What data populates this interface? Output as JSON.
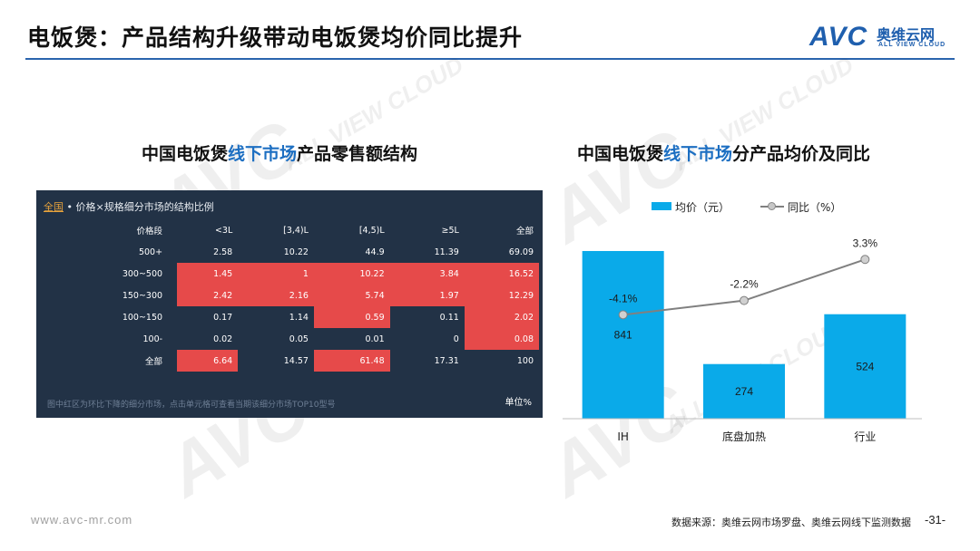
{
  "slide": {
    "title": "电饭煲：产品结构升级带动电饭煲均价同比提升"
  },
  "logo": {
    "brand": "AVC",
    "cn": "奥维云网",
    "en": "ALL VIEW CLOUD"
  },
  "left_panel": {
    "title_prefix": "中国电饭煲",
    "title_highlight": "线下市场",
    "title_suffix": "产品零售额结构",
    "table": {
      "header_tag": "全国",
      "header_text": " • 价格×规格细分市场的结构比例",
      "columns": [
        "价格段",
        "<3L",
        "[3,4)L",
        "[4,5)L",
        "≥5L",
        "全部"
      ],
      "rows": [
        {
          "label": "500+",
          "cells": [
            "2.58",
            "10.22",
            "44.9",
            "11.39",
            "69.09"
          ],
          "red": [
            false,
            false,
            false,
            false,
            false
          ]
        },
        {
          "label": "300~500",
          "cells": [
            "1.45",
            "1",
            "10.22",
            "3.84",
            "16.52"
          ],
          "red": [
            true,
            true,
            true,
            true,
            true
          ]
        },
        {
          "label": "150~300",
          "cells": [
            "2.42",
            "2.16",
            "5.74",
            "1.97",
            "12.29"
          ],
          "red": [
            true,
            true,
            true,
            true,
            true
          ]
        },
        {
          "label": "100~150",
          "cells": [
            "0.17",
            "1.14",
            "0.59",
            "0.11",
            "2.02"
          ],
          "red": [
            false,
            false,
            true,
            false,
            true
          ]
        },
        {
          "label": "100-",
          "cells": [
            "0.02",
            "0.05",
            "0.01",
            "0",
            "0.08"
          ],
          "red": [
            false,
            false,
            false,
            false,
            true
          ]
        },
        {
          "label": "全部",
          "cells": [
            "6.64",
            "14.57",
            "61.48",
            "17.31",
            "100"
          ],
          "red": [
            true,
            false,
            true,
            false,
            false
          ]
        }
      ],
      "footnote": "图中红区为环比下降的细分市场，点击单元格可查看当期该细分市场TOP10型号",
      "unit": "单位%"
    }
  },
  "right_panel": {
    "title_prefix": "中国电饭煲",
    "title_highlight": "线下市场",
    "title_suffix": "分产品均价及同比",
    "legend_bar": "均价（元）",
    "legend_line": "同比（%）"
  },
  "chart_data": {
    "type": "bar",
    "categories": [
      "IH",
      "底盘加热",
      "行业"
    ],
    "series": [
      {
        "name": "均价（元）",
        "type": "bar",
        "values": [
          841,
          274,
          524
        ],
        "labels": [
          "841",
          "274",
          "524"
        ],
        "color": "#0aaae9"
      },
      {
        "name": "同比（%）",
        "type": "line",
        "values": [
          -4.1,
          -2.2,
          3.3
        ],
        "labels": [
          "-4.1%",
          "-2.2%",
          "3.3%"
        ],
        "color": "#808080"
      }
    ],
    "ylim": [
      0,
      900
    ],
    "y2lim": [
      -18,
      6
    ],
    "grid": false,
    "legend": "top-center"
  },
  "footer": {
    "url": "www.avc-mr.com",
    "source": "数据来源：奥维云网市场罗盘、奥维云网线下监测数据",
    "page": "-31-"
  }
}
